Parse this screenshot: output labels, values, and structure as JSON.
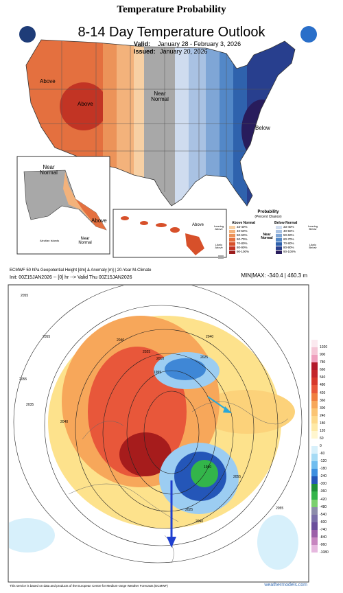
{
  "page_title": "Temperature Probability",
  "outlook": {
    "title": "8-14 Day Temperature Outlook",
    "valid_label": "Valid:",
    "valid": "January 28 - February 3, 2026",
    "issued_label": "Issued:",
    "issued": "January 20, 2026",
    "map_labels": [
      "Above",
      "Above",
      "Near Normal",
      "Below"
    ],
    "alaska_labels": [
      "Near Normal",
      "Above"
    ],
    "hawaii_label": "Above",
    "aleutian_label": "Aleutian Islands",
    "aleutian_near": "Near Normal",
    "legend": {
      "title": "Probability",
      "subtitle": "(Percent Chance)",
      "above_header": "Above Normal",
      "near_header": "Near Normal",
      "below_header": "Below Normal",
      "leaning_above": "Leaning Above",
      "likely_above": "Likely Above",
      "leaning_below": "Leaning Below",
      "likely_below": "Likely Below",
      "ranges": [
        "33-40%",
        "40-50%",
        "50-60%",
        "60-70%",
        "70-80%",
        "80-90%",
        "90-100%"
      ]
    }
  },
  "ecmwf": {
    "header": "ECMWF 50 hPa Geopotential Height [dm] & Anomaly [m] | 20-Year M-Climate",
    "init": "Init: 00Z15JAN2026 -- [0] hr --> Valid Thu 00Z15JAN2026",
    "minmax": "MIN|MAX: -340.4 | 460.3 m",
    "contour_labels": [
      "2055",
      "2055",
      "2040",
      "2025",
      "2010",
      "1995",
      "2025",
      "2040",
      "2055",
      "2035",
      "2040",
      "1980",
      "2025",
      "2040",
      "2055",
      "2055"
    ],
    "colorbar": [
      "1020",
      "900",
      "780",
      "660",
      "540",
      "480",
      "420",
      "360",
      "300",
      "240",
      "180",
      "120",
      "60",
      "0",
      "-60",
      "-120",
      "-180",
      "-240",
      "-300",
      "-360",
      "-420",
      "-480",
      "-540",
      "-600",
      "-740",
      "-840",
      "-960",
      "-1080"
    ],
    "footer": "This service is based on data and products of the European Centre for Medium-range Weather Forecasts (ECMWF)",
    "credit": "weathermodels.com"
  }
}
